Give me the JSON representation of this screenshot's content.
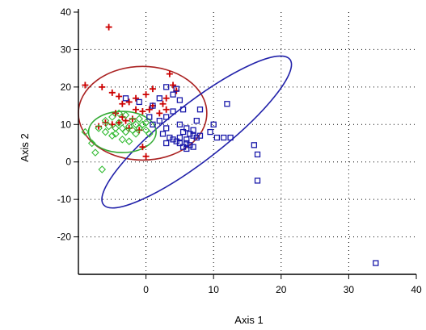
{
  "chart_data": {
    "type": "scatter",
    "title": "",
    "xlabel": "Axis 1",
    "ylabel": "Axis 2",
    "xlim": [
      -10,
      40
    ],
    "ylim": [
      -30,
      40
    ],
    "x_ticks": [
      0,
      10,
      20,
      30,
      40
    ],
    "y_ticks": [
      -20,
      -10,
      0,
      10,
      20,
      30,
      40
    ],
    "x_tick_labels": [
      "0",
      "10",
      "20",
      "30",
      "40"
    ],
    "y_tick_labels": [
      "-20",
      "-10",
      "0",
      "10",
      "20",
      "30",
      "40"
    ],
    "grid": "dotted",
    "legend": "none",
    "series": [
      {
        "marker": "plus",
        "color": "#cc0000",
        "points": [
          [
            -5.5,
            36
          ],
          [
            -9,
            20.5
          ],
          [
            -6.5,
            20
          ],
          [
            -5,
            18.5
          ],
          [
            -4,
            17.5
          ],
          [
            -3.5,
            15.5
          ],
          [
            -2.5,
            16
          ],
          [
            -1.5,
            17
          ],
          [
            0,
            18
          ],
          [
            1,
            19.5
          ],
          [
            3.5,
            23.5
          ],
          [
            4,
            20.5
          ],
          [
            4.5,
            19
          ],
          [
            3,
            17
          ],
          [
            2.5,
            15.5
          ],
          [
            1,
            15
          ],
          [
            0.5,
            14
          ],
          [
            -0.5,
            13.5
          ],
          [
            -2,
            11.5
          ],
          [
            -3,
            11
          ],
          [
            -4,
            10.5
          ],
          [
            -5,
            10
          ],
          [
            -6,
            10.5
          ],
          [
            -7,
            9.5
          ],
          [
            -2.5,
            9
          ],
          [
            -1,
            8.5
          ],
          [
            -0.5,
            4
          ],
          [
            0,
            1.5
          ],
          [
            2,
            13
          ],
          [
            3,
            14
          ],
          [
            -1.5,
            14
          ],
          [
            -4.5,
            13
          ],
          [
            -3.5,
            12
          ]
        ]
      },
      {
        "marker": "square",
        "color": "#1a1aaa",
        "points": [
          [
            -3,
            17
          ],
          [
            -1,
            16
          ],
          [
            1,
            15
          ],
          [
            2,
            17
          ],
          [
            3,
            20
          ],
          [
            4,
            18
          ],
          [
            4.5,
            19.5
          ],
          [
            5,
            16.5
          ],
          [
            5.5,
            14
          ],
          [
            4,
            13.5
          ],
          [
            3,
            12
          ],
          [
            2,
            11
          ],
          [
            1,
            10
          ],
          [
            0.5,
            12
          ],
          [
            5,
            10
          ],
          [
            6,
            9
          ],
          [
            7,
            8.5
          ],
          [
            5.5,
            8
          ],
          [
            6.5,
            7.5
          ],
          [
            7,
            7
          ],
          [
            7.5,
            6.5
          ],
          [
            6,
            6
          ],
          [
            5,
            6.5
          ],
          [
            4,
            6
          ],
          [
            5,
            5
          ],
          [
            6,
            5
          ],
          [
            6.5,
            4.5
          ],
          [
            7,
            4
          ],
          [
            6,
            3.5
          ],
          [
            5.5,
            4
          ],
          [
            4.5,
            5.5
          ],
          [
            3.5,
            6.5
          ],
          [
            8,
            7
          ],
          [
            9.5,
            8
          ],
          [
            10,
            10
          ],
          [
            10.5,
            6.5
          ],
          [
            11.5,
            6.5
          ],
          [
            12.5,
            6.5
          ],
          [
            12,
            15.5
          ],
          [
            16,
            4.5
          ],
          [
            16.5,
            2
          ],
          [
            16.5,
            -5
          ],
          [
            34,
            -27
          ],
          [
            3,
            5
          ],
          [
            2.5,
            7.5
          ],
          [
            7.5,
            11
          ],
          [
            8,
            14
          ],
          [
            3,
            9
          ]
        ]
      },
      {
        "marker": "diamond",
        "color": "#33bb33",
        "points": [
          [
            -9,
            8
          ],
          [
            -8,
            5
          ],
          [
            -7.5,
            2.5
          ],
          [
            -6.5,
            -2
          ],
          [
            -7,
            9
          ],
          [
            -6,
            8
          ],
          [
            -5,
            7
          ],
          [
            -4.5,
            9
          ],
          [
            -4,
            10.5
          ],
          [
            -3.5,
            9
          ],
          [
            -3,
            8
          ],
          [
            -2.5,
            9.5
          ],
          [
            -2,
            8.5
          ],
          [
            -1.5,
            7.5
          ],
          [
            -1,
            9
          ],
          [
            -0.5,
            10
          ],
          [
            0,
            8.5
          ],
          [
            0.5,
            7.5
          ],
          [
            -5,
            12
          ],
          [
            -4,
            13
          ],
          [
            -3,
            12.5
          ],
          [
            -6,
            11
          ],
          [
            -2,
            11
          ],
          [
            -1,
            11.5
          ],
          [
            -3.5,
            6
          ],
          [
            -2.5,
            5.5
          ],
          [
            -5.5,
            9.5
          ],
          [
            -4.5,
            7.5
          ],
          [
            0,
            10.5
          ],
          [
            -1.5,
            10
          ]
        ]
      }
    ],
    "ellipses": [
      {
        "color": "#aa2222",
        "cx": -0.5,
        "cy": 13,
        "rx": 9.5,
        "ry": 12.5,
        "angle": 0
      },
      {
        "color": "#2222aa",
        "cx": 7.5,
        "cy": 8,
        "rx": 17.5,
        "ry": 7.5,
        "angle": -38
      },
      {
        "color": "#33aa33",
        "cx": -3.5,
        "cy": 8,
        "rx": 5,
        "ry": 5.5,
        "angle": 0
      }
    ]
  }
}
